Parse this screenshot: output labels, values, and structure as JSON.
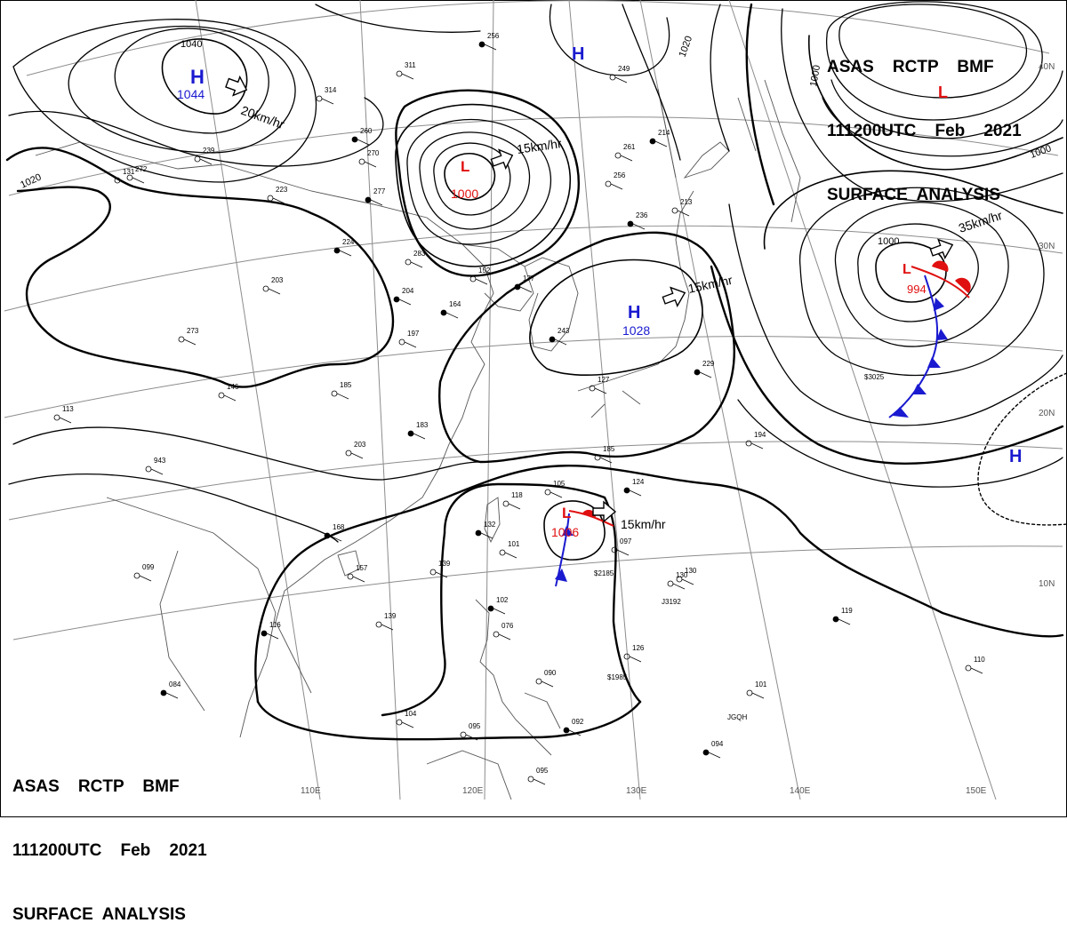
{
  "header": {
    "line1": "ASAS    RCTP    BMF",
    "line2": "111200UTC    Feb    2021",
    "line3": "SURFACE  ANALYSIS"
  },
  "colors": {
    "isobar": "#000000",
    "grid": "#8c8c8c",
    "coast": "#555555",
    "high": "#1a1ad0",
    "low": "#e01010",
    "cold_front": "#1a1ad0",
    "warm_front": "#e01010"
  },
  "pressure_centers": [
    {
      "id": "high-1044",
      "type": "H",
      "value": "1044"
    },
    {
      "id": "high-n",
      "type": "H",
      "value": ""
    },
    {
      "id": "low-1000",
      "type": "L",
      "value": "1000"
    },
    {
      "id": "high-1028",
      "type": "H",
      "value": "1028"
    },
    {
      "id": "low-ne",
      "type": "L",
      "value": ""
    },
    {
      "id": "low-994",
      "type": "L",
      "value": "994"
    },
    {
      "id": "low-1006",
      "type": "L",
      "value": "1006"
    },
    {
      "id": "high-e",
      "type": "H",
      "value": ""
    }
  ],
  "movements": [
    {
      "id": "mv-20",
      "label": "20km/hr"
    },
    {
      "id": "mv-15a",
      "label": "15km/hr"
    },
    {
      "id": "mv-15b",
      "label": "15km/hr"
    },
    {
      "id": "mv-35",
      "label": "35km/hr"
    },
    {
      "id": "mv-15c",
      "label": "15km/hr"
    }
  ],
  "isobar_labels": [
    "1040",
    "1020",
    "1020",
    "1000",
    "1000",
    "1000"
  ],
  "lon_labels": [
    "110E",
    "120E",
    "130E",
    "140E",
    "150E"
  ],
  "lat_labels": [
    "40N",
    "30N",
    "20N",
    "10N"
  ],
  "stations": [
    "256",
    "311",
    "314",
    "260",
    "270",
    "239",
    "277",
    "223",
    "272",
    "224",
    "283",
    "203",
    "204",
    "273",
    "197",
    "164",
    "185",
    "152",
    "177",
    "146",
    "113",
    "183",
    "203",
    "943",
    "243",
    "127",
    "130",
    "236",
    "261",
    "256",
    "214",
    "213",
    "249",
    "229",
    "194",
    "185",
    "168",
    "157",
    "139",
    "132",
    "101",
    "118",
    "124",
    "097",
    "130",
    "116",
    "139",
    "105",
    "102",
    "076",
    "090",
    "092",
    "126",
    "101",
    "119",
    "110",
    "095",
    "094",
    "095",
    "104",
    "084",
    "099",
    "131"
  ],
  "ship_ids": [
    "$2185",
    "J3192",
    "$1985",
    "JGQH",
    "$3025"
  ]
}
